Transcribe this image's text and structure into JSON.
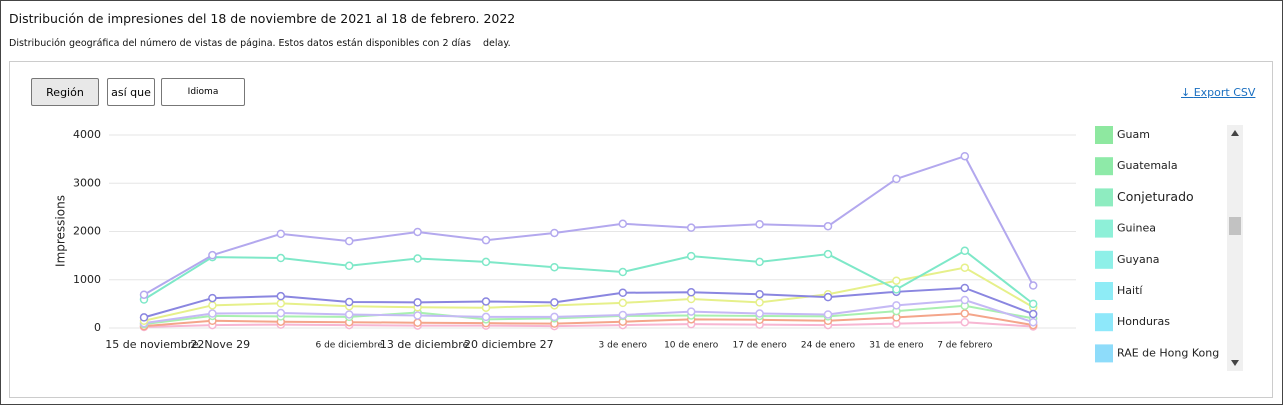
{
  "header": {
    "title": "Distribución de impresiones del 18 de noviembre de 2021 al 18 de febrero. 2022",
    "subtitle": "Distribución geográfica del número de vistas de página. Estos datos están disponibles con 2 días",
    "delay": "delay."
  },
  "buttons": [
    "Región",
    "así que",
    "Idioma"
  ],
  "export": "Export CSV",
  "legend": [
    {
      "name": "Guam",
      "color": "#8ee8a0"
    },
    {
      "name": "Guatemala",
      "color": "#8eeaa8"
    },
    {
      "name": "Conjeturado",
      "color": "#8eecc0"
    },
    {
      "name": "Guinea",
      "color": "#8ef0d8"
    },
    {
      "name": "Guyana",
      "color": "#8ef0e8"
    },
    {
      "name": "Haití",
      "color": "#8eecf6"
    },
    {
      "name": "Honduras",
      "color": "#8ee8fa"
    },
    {
      "name": "RAE de Hong Kong",
      "color": "#8edcfa"
    }
  ],
  "chart_data": {
    "type": "line",
    "y_label": "Impressions",
    "categories": [
      "15 de noviembre",
      "22Nove 29",
      null,
      "6 de diciembre",
      "13 de diciembre",
      "20 diciembre 27",
      null,
      "3 de enero",
      "10 de enero",
      "17 de enero",
      "24 de enero",
      "31 de enero",
      "7 de febrero",
      null
    ],
    "ylim": [
      0,
      4000
    ],
    "yticks": [
      0,
      1000,
      2000,
      3000,
      4000
    ],
    "grid": true,
    "series": [
      {
        "color": "#f7b6d2",
        "values": [
          20,
          60,
          70,
          60,
          50,
          50,
          40,
          60,
          80,
          70,
          60,
          90,
          120,
          30
        ]
      },
      {
        "color": "#f4a58a",
        "values": [
          40,
          150,
          130,
          120,
          110,
          100,
          90,
          130,
          180,
          170,
          150,
          220,
          300,
          60
        ]
      },
      {
        "color": "#a8f0b0",
        "values": [
          80,
          250,
          240,
          230,
          320,
          180,
          200,
          250,
          260,
          250,
          240,
          350,
          460,
          200
        ]
      },
      {
        "color": "#c5b9f5",
        "values": [
          100,
          300,
          310,
          280,
          260,
          230,
          230,
          270,
          340,
          300,
          280,
          470,
          580,
          120
        ]
      },
      {
        "color": "#e6f08a",
        "values": [
          150,
          470,
          510,
          450,
          430,
          420,
          470,
          520,
          600,
          530,
          700,
          980,
          1250,
          430
        ]
      },
      {
        "color": "#8a86e0",
        "values": [
          220,
          620,
          660,
          540,
          530,
          550,
          530,
          730,
          740,
          700,
          640,
          750,
          830,
          290
        ]
      },
      {
        "color": "#7ee8c8",
        "values": [
          590,
          1470,
          1450,
          1290,
          1440,
          1370,
          1260,
          1160,
          1490,
          1370,
          1530,
          800,
          1600,
          500
        ]
      },
      {
        "color": "#b3a8ee",
        "values": [
          690,
          1510,
          1950,
          1800,
          1990,
          1820,
          1970,
          2160,
          2080,
          2150,
          2110,
          3090,
          3560,
          880
        ]
      }
    ]
  }
}
